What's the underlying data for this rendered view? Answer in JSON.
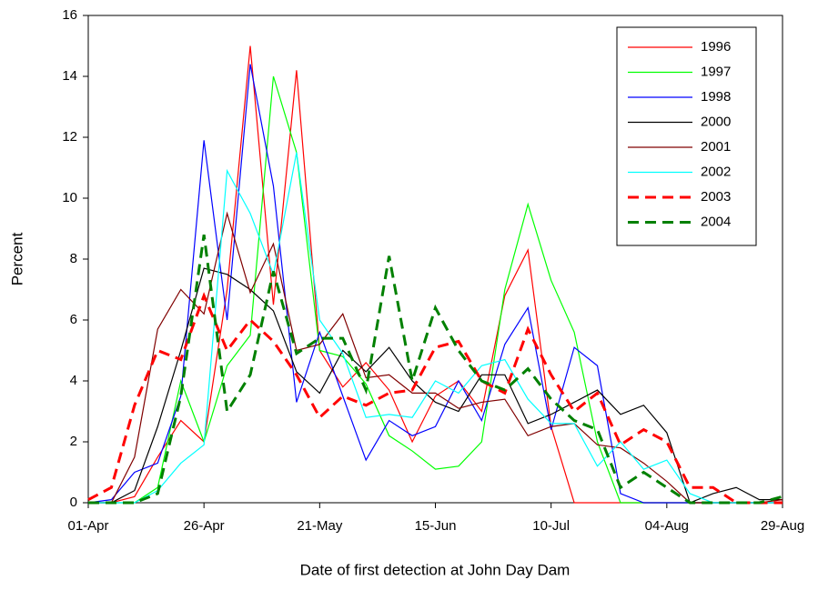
{
  "chart_data": {
    "type": "line",
    "x_label": "Date of first detection at John Day Dam",
    "y_label": "Percent",
    "categories": [
      "01-Apr",
      null,
      null,
      null,
      null,
      "26-Apr",
      null,
      null,
      null,
      null,
      "21-May",
      null,
      null,
      null,
      null,
      "15-Jun",
      null,
      null,
      null,
      null,
      "10-Jul",
      null,
      null,
      null,
      null,
      "04-Aug",
      null,
      null,
      null,
      null,
      "29-Aug"
    ],
    "ylim": [
      0,
      16
    ],
    "yticks": [
      0,
      2,
      4,
      6,
      8,
      10,
      12,
      14,
      16
    ],
    "legend": "top-right",
    "series": [
      {
        "name": "1996",
        "color": "#ff0000",
        "dashed": false,
        "values": [
          0,
          0,
          0.2,
          1.5,
          2.7,
          2,
          7,
          15,
          6.5,
          14.2,
          5,
          3.8,
          4.6,
          3.7,
          2,
          3.5,
          4,
          3,
          6.8,
          8.3,
          2.5,
          0,
          0,
          0,
          0,
          0,
          0,
          0,
          0,
          0,
          0
        ]
      },
      {
        "name": "1997",
        "color": "#00ff00",
        "dashed": false,
        "values": [
          0,
          0,
          0,
          0.5,
          4,
          2,
          4.5,
          5.5,
          14,
          11.5,
          5,
          4.8,
          3.9,
          2.2,
          1.7,
          1.1,
          1.2,
          2,
          7,
          9.8,
          7.3,
          5.6,
          2,
          0,
          0,
          0,
          0,
          0,
          0,
          0,
          0
        ]
      },
      {
        "name": "1998",
        "color": "#0000ff",
        "dashed": false,
        "values": [
          0,
          0.1,
          1,
          1.3,
          3.5,
          11.9,
          6,
          14.4,
          10.4,
          3.3,
          5.6,
          3.5,
          1.4,
          2.7,
          2.2,
          2.5,
          4,
          2.7,
          5.2,
          6.4,
          2.4,
          5.1,
          4.5,
          0.3,
          0,
          0,
          0,
          0,
          0,
          0,
          0
        ]
      },
      {
        "name": "2000",
        "color": "#000000",
        "dashed": false,
        "values": [
          0,
          0,
          0.4,
          2.5,
          5,
          7.7,
          7.5,
          7,
          6.3,
          4.3,
          3.6,
          5,
          4.3,
          5.1,
          4,
          3.3,
          3,
          4.2,
          4.2,
          2.6,
          2.9,
          3.3,
          3.7,
          2.9,
          3.2,
          2.3,
          0,
          0.3,
          0.5,
          0.1,
          0.1
        ]
      },
      {
        "name": "2001",
        "color": "#800000",
        "dashed": false,
        "values": [
          0,
          0,
          1.5,
          5.7,
          7,
          6.2,
          9.5,
          6.9,
          8.5,
          5,
          5.2,
          6.2,
          4.1,
          4.2,
          3.6,
          3.6,
          3.1,
          3.3,
          3.4,
          2.2,
          2.5,
          2.6,
          1.9,
          1.8,
          1.3,
          0.7,
          0,
          0,
          0,
          0,
          0.1
        ]
      },
      {
        "name": "2002",
        "color": "#00ffff",
        "dashed": false,
        "values": [
          0,
          0,
          0,
          0.4,
          1.3,
          1.9,
          10.9,
          9.5,
          7.5,
          11.5,
          6,
          4.9,
          2.8,
          2.9,
          2.8,
          4,
          3.6,
          4.5,
          4.7,
          3.4,
          2.6,
          2.6,
          1.2,
          2,
          1.1,
          1.4,
          0.3,
          0,
          0,
          0,
          0
        ]
      },
      {
        "name": "2003",
        "color": "#ff0000",
        "dashed": true,
        "values": [
          0.1,
          0.5,
          3.2,
          5,
          4.7,
          6.8,
          5,
          6,
          5.3,
          4.2,
          2.8,
          3.5,
          3.2,
          3.6,
          3.7,
          5.1,
          5.3,
          4,
          3.6,
          5.7,
          4.2,
          3,
          3.6,
          1.9,
          2.4,
          2,
          0.5,
          0.5,
          0,
          0,
          0
        ]
      },
      {
        "name": "2004",
        "color": "#008000",
        "dashed": true,
        "values": [
          0,
          0,
          0,
          0.3,
          3.5,
          8.8,
          3,
          4.2,
          7.6,
          4.9,
          5.4,
          5.4,
          3.7,
          8.1,
          4,
          6.4,
          5,
          4,
          3.7,
          4.4,
          3.4,
          2.7,
          2.4,
          0.5,
          1,
          0.5,
          0,
          0,
          0,
          0,
          0.2
        ]
      }
    ]
  }
}
